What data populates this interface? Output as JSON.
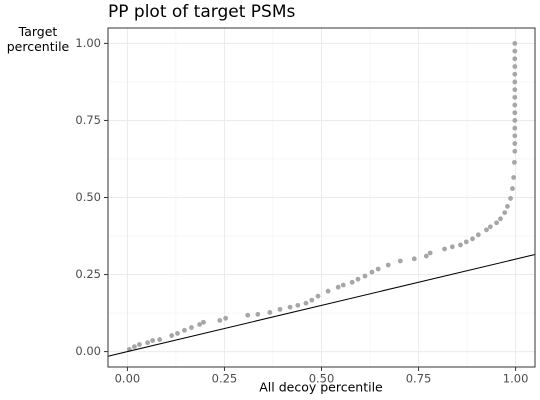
{
  "chart_data": {
    "type": "scatter",
    "title": "PP plot of target PSMs",
    "x_label": "All decoy percentile",
    "y_label": "Target\npercentile",
    "xlim": [
      -0.05,
      1.05
    ],
    "ylim": [
      -0.05,
      1.05
    ],
    "xticks": [
      {
        "value": 0,
        "label": "0.00"
      },
      {
        "value": 0.25,
        "label": "0.25"
      },
      {
        "value": 0.5,
        "label": "0.50"
      },
      {
        "value": 0.75,
        "label": "0.75"
      },
      {
        "value": 1,
        "label": "1.00"
      }
    ],
    "yticks": [
      {
        "value": 0,
        "label": "0.00"
      },
      {
        "value": 0.25,
        "label": "0.25"
      },
      {
        "value": 0.5,
        "label": "0.50"
      },
      {
        "value": 0.75,
        "label": "0.75"
      },
      {
        "value": 1,
        "label": "1.00"
      }
    ],
    "xminor": [
      0.125,
      0.375,
      0.625,
      0.875
    ],
    "yminor": [
      0.125,
      0.375,
      0.625,
      0.875
    ],
    "grid": true,
    "points": {
      "color": "#a6a6a6",
      "x": [
        0.005,
        0.018,
        0.031,
        0.052,
        0.065,
        0.083,
        0.114,
        0.129,
        0.147,
        0.165,
        0.186,
        0.196,
        0.238,
        0.253,
        0.31,
        0.336,
        0.367,
        0.393,
        0.419,
        0.439,
        0.46,
        0.475,
        0.491,
        0.517,
        0.543,
        0.556,
        0.579,
        0.594,
        0.612,
        0.63,
        0.646,
        0.672,
        0.703,
        0.739,
        0.77,
        0.78,
        0.817,
        0.837,
        0.858,
        0.873,
        0.889,
        0.904,
        0.925,
        0.935,
        0.951,
        0.961,
        0.972,
        0.979,
        0.987,
        0.992,
        0.995,
        0.997,
        0.998,
        0.998,
        0.998,
        0.998,
        0.998,
        0.998,
        0.998,
        0.998,
        0.998,
        0.998,
        0.998,
        0.998,
        0.998,
        0.998,
        0.998
      ],
      "y": [
        0.007,
        0.016,
        0.023,
        0.029,
        0.036,
        0.039,
        0.052,
        0.059,
        0.069,
        0.078,
        0.088,
        0.095,
        0.101,
        0.108,
        0.118,
        0.121,
        0.127,
        0.137,
        0.144,
        0.15,
        0.157,
        0.167,
        0.18,
        0.196,
        0.209,
        0.216,
        0.225,
        0.235,
        0.245,
        0.258,
        0.268,
        0.281,
        0.294,
        0.301,
        0.31,
        0.32,
        0.333,
        0.34,
        0.346,
        0.356,
        0.366,
        0.379,
        0.395,
        0.405,
        0.418,
        0.431,
        0.451,
        0.471,
        0.497,
        0.529,
        0.565,
        0.614,
        0.65,
        0.675,
        0.7,
        0.725,
        0.75,
        0.775,
        0.8,
        0.825,
        0.85,
        0.875,
        0.9,
        0.925,
        0.95,
        0.975,
        1.0
      ]
    },
    "reference_line": {
      "color": "#000000",
      "slope": 0.3,
      "intercept": 0
    }
  }
}
